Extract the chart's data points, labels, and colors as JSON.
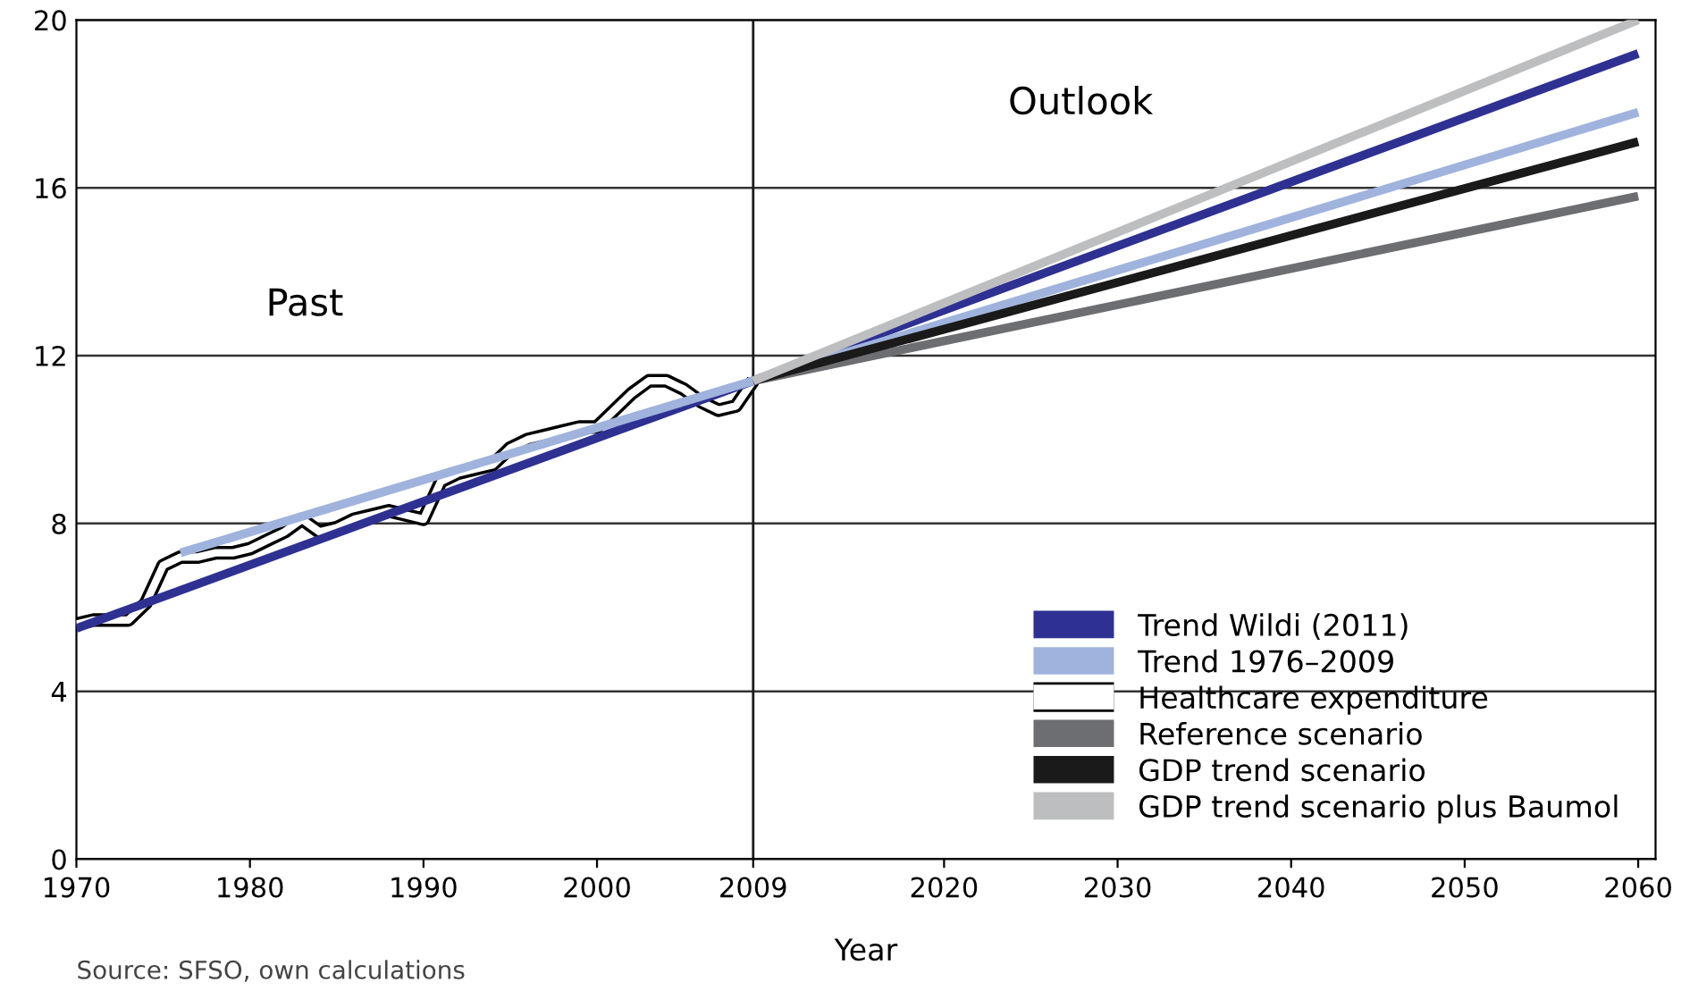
{
  "chart_data": {
    "type": "line",
    "xlabel": "Year",
    "xlim": [
      1970,
      2061
    ],
    "xticks": [
      1970,
      1980,
      1990,
      2000,
      2009,
      2020,
      2030,
      2040,
      2050,
      2060
    ],
    "ylim": [
      0,
      20
    ],
    "yticks": [
      0,
      4,
      8,
      12,
      16,
      20
    ],
    "grid": "y",
    "legend": "bottom right",
    "ref_lines": [
      {
        "axis": "x",
        "value": 2009,
        "color": "#1a1a1a"
      }
    ],
    "annotations": [
      "Past",
      "Outlook",
      "Source: SFSO, own calculations"
    ],
    "series": [
      {
        "name": "Trend Wildi (2011)",
        "color": "#2e3192",
        "x": [
          1970,
          2009,
          2060
        ],
        "values": [
          5.5,
          11.4,
          19.2
        ]
      },
      {
        "name": "Trend 1976–2009",
        "color": "#9fb3dd",
        "x": [
          1976,
          2009,
          2060
        ],
        "values": [
          7.3,
          11.4,
          17.8
        ]
      },
      {
        "name": "Healthcare expenditure",
        "color": "#ffffff",
        "x": [
          1970,
          1971,
          1972,
          1973,
          1974,
          1975,
          1976,
          1977,
          1978,
          1979,
          1980,
          1981,
          1982,
          1983,
          1984,
          1985,
          1986,
          1987,
          1988,
          1989,
          1990,
          1991,
          1992,
          1993,
          1994,
          1995,
          1996,
          1997,
          1998,
          1999,
          2000,
          2001,
          2002,
          2003,
          2004,
          2005,
          2006,
          2007,
          2008,
          2009
        ],
        "values": [
          5.6,
          5.7,
          5.7,
          5.7,
          6.1,
          7.0,
          7.2,
          7.2,
          7.3,
          7.3,
          7.4,
          7.6,
          7.8,
          8.1,
          7.8,
          7.9,
          8.1,
          8.2,
          8.3,
          8.2,
          8.1,
          9.0,
          9.2,
          9.3,
          9.4,
          9.8,
          10.0,
          10.1,
          10.2,
          10.3,
          10.3,
          10.7,
          11.1,
          11.4,
          11.4,
          11.2,
          10.9,
          10.7,
          10.8,
          11.4
        ]
      },
      {
        "name": "Reference scenario",
        "color": "#6d6e71",
        "x": [
          2009,
          2060
        ],
        "values": [
          11.4,
          15.8
        ]
      },
      {
        "name": "GDP trend scenario",
        "color": "#1a1a1a",
        "x": [
          2009,
          2060
        ],
        "values": [
          11.4,
          17.1
        ]
      },
      {
        "name": "GDP trend scenario plus Baumol",
        "color": "#bdbec0",
        "x": [
          2009,
          2060
        ],
        "values": [
          11.4,
          20.0
        ]
      }
    ]
  }
}
